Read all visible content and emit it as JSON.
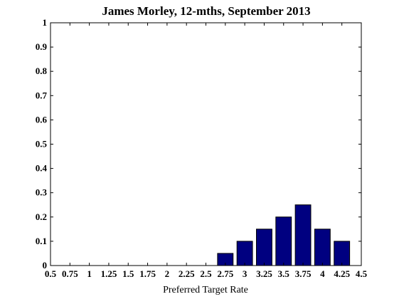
{
  "chart_data": {
    "type": "bar",
    "title": "James Morley, 12-mths, September 2013",
    "xlabel": "Preferred Target Rate",
    "ylabel": "",
    "xlim": [
      0.5,
      4.5
    ],
    "ylim": [
      0,
      1
    ],
    "grid": false,
    "x_ticks": [
      "0.5",
      "0.75",
      "1",
      "1.25",
      "1.5",
      "1.75",
      "2",
      "2.25",
      "2.5",
      "2.75",
      "3",
      "3.25",
      "3.5",
      "3.75",
      "4",
      "4.25",
      "4.5"
    ],
    "y_ticks": [
      "0",
      "0.1",
      "0.2",
      "0.3",
      "0.4",
      "0.5",
      "0.6",
      "0.7",
      "0.8",
      "0.9",
      "1"
    ],
    "bar_width": 0.2,
    "bars": [
      {
        "x": 2.75,
        "value": 0.05
      },
      {
        "x": 3.0,
        "value": 0.1
      },
      {
        "x": 3.25,
        "value": 0.15
      },
      {
        "x": 3.5,
        "value": 0.2
      },
      {
        "x": 3.75,
        "value": 0.25
      },
      {
        "x": 4.0,
        "value": 0.15
      },
      {
        "x": 4.25,
        "value": 0.1
      }
    ],
    "bar_color": "#000080",
    "bar_edge_color": "#000000"
  }
}
